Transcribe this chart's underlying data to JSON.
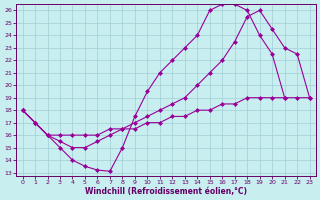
{
  "xlabel": "Windchill (Refroidissement éolien,°C)",
  "bg_color": "#c8eef0",
  "grid_color": "#a0cdd4",
  "line_color": "#990099",
  "xlim_min": -0.5,
  "xlim_max": 23.5,
  "ylim_min": 12.7,
  "ylim_max": 26.5,
  "xticks": [
    0,
    1,
    2,
    3,
    4,
    5,
    6,
    7,
    8,
    9,
    10,
    11,
    12,
    13,
    14,
    15,
    16,
    17,
    18,
    19,
    20,
    21,
    22,
    23
  ],
  "yticks": [
    13,
    14,
    15,
    16,
    17,
    18,
    19,
    20,
    21,
    22,
    23,
    24,
    25,
    26
  ],
  "line1_x": [
    0,
    1,
    2,
    3,
    4,
    5,
    6,
    7,
    8,
    9,
    10,
    11,
    12,
    13,
    14,
    15,
    16,
    17,
    18,
    19,
    20,
    21
  ],
  "line1_y": [
    18,
    17,
    16,
    15,
    14,
    13.5,
    13.2,
    13.1,
    15.0,
    17.5,
    19.5,
    21.0,
    22.0,
    23.0,
    24.0,
    26.0,
    26.5,
    26.5,
    26.0,
    24.0,
    22.5,
    19.0
  ],
  "line2_x": [
    0,
    1,
    2,
    3,
    4,
    5,
    6,
    7,
    8,
    9,
    10,
    11,
    12,
    13,
    14,
    15,
    16,
    17,
    18,
    19,
    20,
    21,
    22,
    23
  ],
  "line2_y": [
    18,
    17.0,
    16.0,
    15.5,
    15.0,
    15.0,
    15.5,
    16.0,
    16.5,
    17.0,
    17.5,
    18.0,
    18.5,
    19.0,
    20.0,
    21.0,
    22.0,
    23.5,
    25.5,
    26.0,
    24.5,
    23.0,
    22.5,
    19.0
  ],
  "line3_x": [
    0,
    1,
    2,
    3,
    4,
    5,
    6,
    7,
    8,
    9,
    10,
    11,
    12,
    13,
    14,
    15,
    16,
    17,
    18,
    19,
    20,
    21,
    22,
    23
  ],
  "line3_y": [
    18,
    17.0,
    16.0,
    16.0,
    16.0,
    16.0,
    16.0,
    16.5,
    16.5,
    16.5,
    17.0,
    17.0,
    17.5,
    17.5,
    18.0,
    18.0,
    18.5,
    18.5,
    19.0,
    19.0,
    19.0,
    19.0,
    19.0,
    19.0
  ]
}
